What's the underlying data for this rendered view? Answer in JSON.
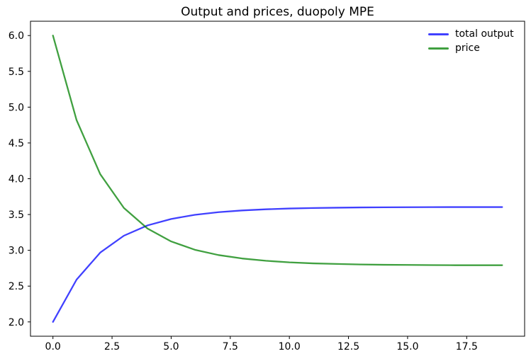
{
  "chart_data": {
    "type": "line",
    "title": "Output and prices, duopoly MPE",
    "xlabel": "",
    "ylabel": "",
    "grid": false,
    "legend": {
      "position": "upper right",
      "frame": false
    },
    "xlim": [
      -0.95,
      19.95
    ],
    "ylim": [
      1.8,
      6.2
    ],
    "xticks": {
      "values": [
        0,
        2.5,
        5,
        7.5,
        10,
        12.5,
        15,
        17.5
      ],
      "labels": [
        "0.0",
        "2.5",
        "5.0",
        "7.5",
        "10.0",
        "12.5",
        "15.0",
        "17.5"
      ]
    },
    "yticks": {
      "values": [
        2,
        2.5,
        3,
        3.5,
        4,
        4.5,
        5,
        5.5,
        6
      ],
      "labels": [
        "2.0",
        "2.5",
        "3.0",
        "3.5",
        "4.0",
        "4.5",
        "5.0",
        "5.5",
        "6.0"
      ]
    },
    "x": [
      0,
      1,
      2,
      3,
      4,
      5,
      6,
      7,
      8,
      9,
      10,
      11,
      12,
      13,
      14,
      15,
      16,
      17,
      18,
      19
    ],
    "series": [
      {
        "name": "total output",
        "color": "#0000FF",
        "opacity": 0.75,
        "values": [
          2.0,
          2.591,
          2.968,
          3.204,
          3.348,
          3.438,
          3.496,
          3.533,
          3.557,
          3.573,
          3.584,
          3.591,
          3.595,
          3.599,
          3.601,
          3.602,
          3.603,
          3.604,
          3.604,
          3.604
        ]
      },
      {
        "name": "price",
        "color": "#008000",
        "opacity": 0.75,
        "values": [
          6.0,
          4.818,
          4.064,
          3.592,
          3.304,
          3.124,
          3.008,
          2.934,
          2.886,
          2.854,
          2.832,
          2.818,
          2.81,
          2.802,
          2.798,
          2.796,
          2.794,
          2.792,
          2.792,
          2.792
        ]
      }
    ],
    "axis_color": "#000000"
  }
}
